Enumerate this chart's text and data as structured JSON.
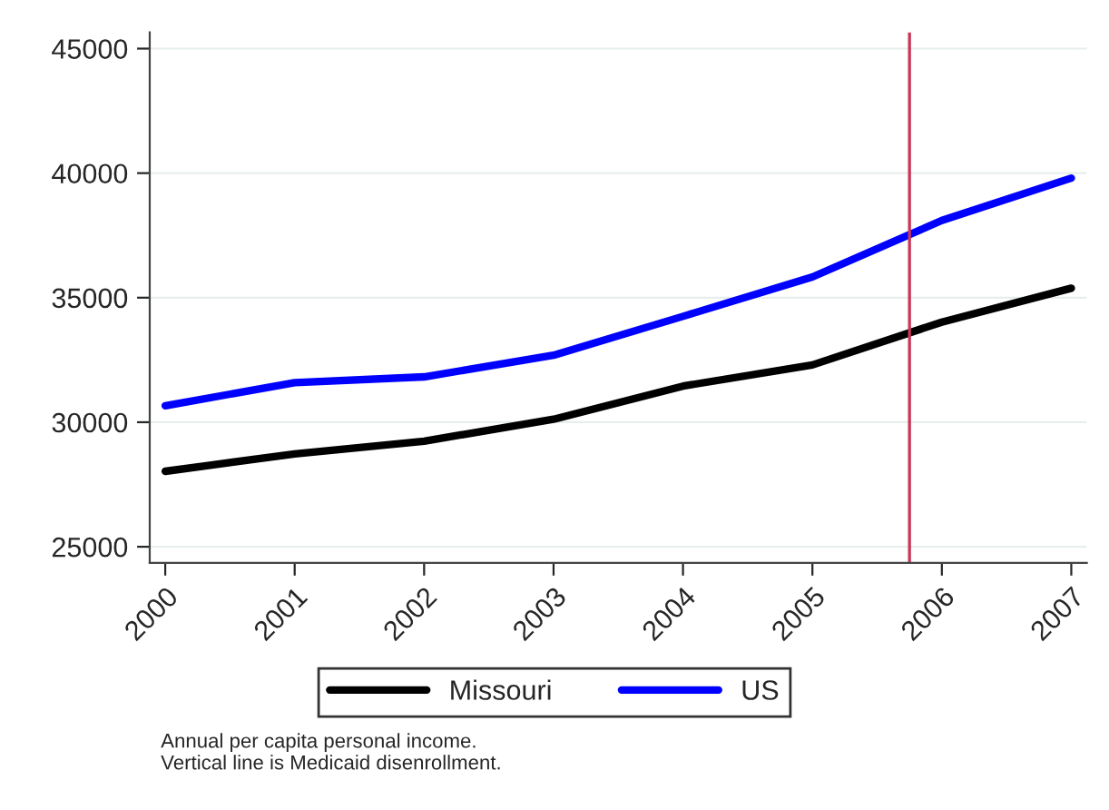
{
  "chart_data": {
    "type": "line",
    "x": [
      2000,
      2001,
      2002,
      2003,
      2004,
      2005,
      2006,
      2007
    ],
    "series": [
      {
        "name": "Missouri",
        "color": "#000000",
        "values": [
          28030,
          28730,
          29240,
          30120,
          31450,
          32300,
          34020,
          35380
        ]
      },
      {
        "name": "US",
        "color": "#0000ff",
        "values": [
          30660,
          31590,
          31820,
          32690,
          34250,
          35830,
          38100,
          39800
        ]
      }
    ],
    "xlim": [
      1999.88,
      2007.12
    ],
    "xticks": [
      2000,
      2001,
      2002,
      2003,
      2004,
      2005,
      2006,
      2007
    ],
    "ylim": [
      24350,
      45650
    ],
    "yticks": [
      25000,
      30000,
      35000,
      40000,
      45000
    ],
    "ref_lines": [
      {
        "axis": "x",
        "value": 2005.75,
        "color": "#c8385a"
      }
    ],
    "grid": "y",
    "legend": "bottom",
    "marker": "none",
    "line_style": "solid",
    "annotations": [
      "Annual per capita personal income.\nVertical line is Medicaid disenrollment."
    ]
  }
}
